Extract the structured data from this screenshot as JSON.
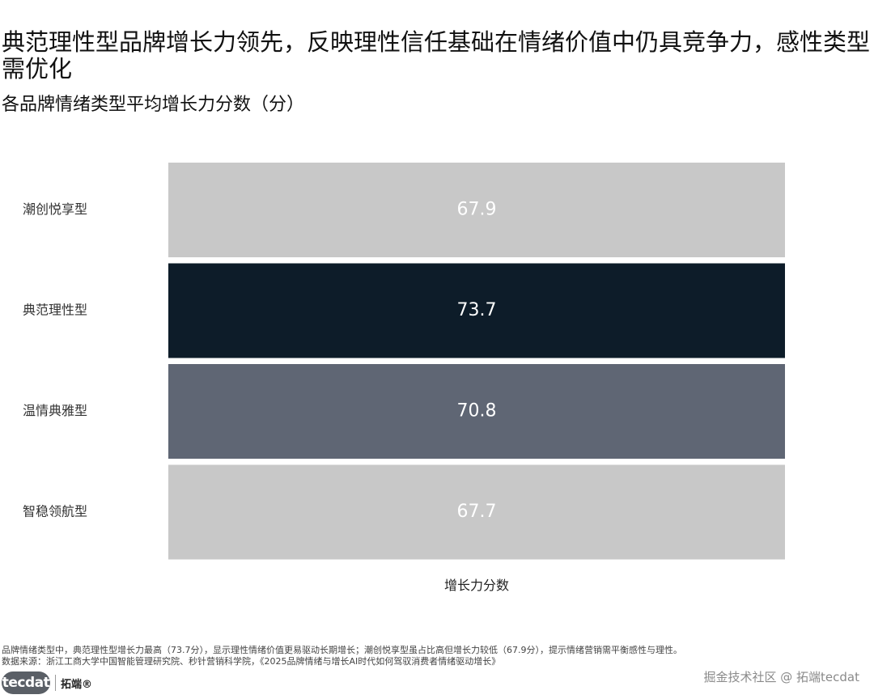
{
  "title": "典范理性型品牌增长力领先，反映理性信任基础在情绪价值中仍具竞争力，感性类型需优化",
  "subtitle": "各品牌情绪类型平均增长力分数（分）",
  "chart_data": {
    "type": "bar",
    "orientation": "horizontal",
    "categories": [
      "潮创悦享型",
      "典范理性型",
      "温情典雅型",
      "智稳领航型"
    ],
    "values": [
      67.9,
      73.7,
      70.8,
      67.7
    ],
    "value_labels": [
      "67.9",
      "73.7",
      "70.8",
      "67.7"
    ],
    "bar_colors": [
      "#c8c8c8",
      "#0d1c29",
      "#5f6674",
      "#c8c8c8"
    ],
    "label_colors": [
      "#ffffff",
      "#ffffff",
      "#ffffff",
      "#ffffff"
    ],
    "xlabel": "增长力分数",
    "ylabel": "",
    "grid": false,
    "legend": "none"
  },
  "note": {
    "line1": "品牌情绪类型中，典范理性型增长力最高（73.7分），显示理性情绪价值更易驱动长期增长；潮创悦享型虽占比高但增长力较低（67.9分），提示情绪营销需平衡感性与理性。",
    "line2": "数据来源：浙江工商大学中国智能管理研究院、秒针营销科学院，《2025品牌情绪与增长AI时代如何驾驭消费者情绪驱动增长》"
  },
  "logo": {
    "mark": "tecdat",
    "name": "拓端®"
  },
  "watermark": "掘金技术社区 @ 拓端tecdat"
}
